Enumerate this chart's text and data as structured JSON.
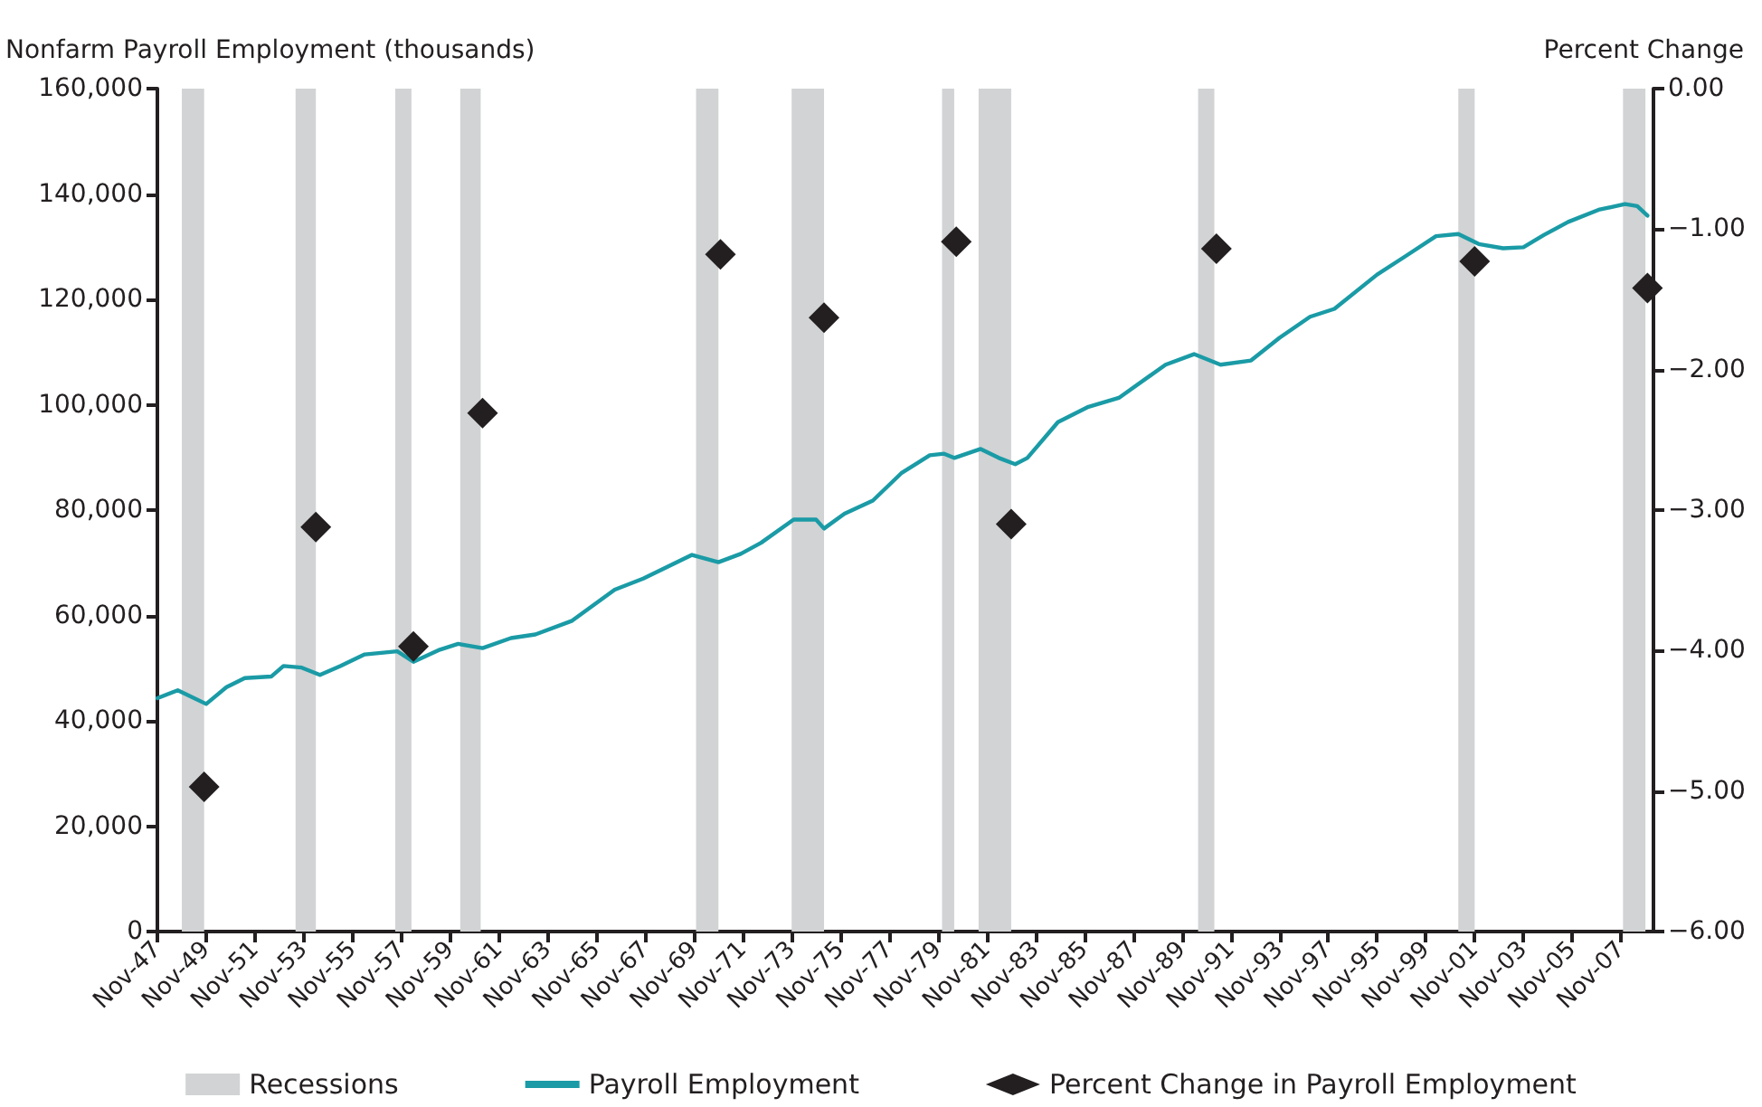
{
  "chart_data": {
    "type": "line",
    "ylabel": "Nonfarm Payroll Employment (thousands)",
    "y2label": "Percent Change",
    "xlim": [
      "1947-11",
      "2009-03"
    ],
    "xticks": [
      {
        "value": "1947-11",
        "label": "Nov-47"
      },
      {
        "value": "1949-11",
        "label": "Nov-49"
      },
      {
        "value": "1951-11",
        "label": "Nov-51"
      },
      {
        "value": "1953-11",
        "label": "Nov-53"
      },
      {
        "value": "1955-11",
        "label": "Nov-55"
      },
      {
        "value": "1957-11",
        "label": "Nov-57"
      },
      {
        "value": "1959-11",
        "label": "Nov-59"
      },
      {
        "value": "1961-11",
        "label": "Nov-61"
      },
      {
        "value": "1963-11",
        "label": "Nov-63"
      },
      {
        "value": "1965-11",
        "label": "Nov-65"
      },
      {
        "value": "1967-11",
        "label": "Nov-67"
      },
      {
        "value": "1969-11",
        "label": "Nov-69"
      },
      {
        "value": "1971-11",
        "label": "Nov-71"
      },
      {
        "value": "1973-11",
        "label": "Nov-73"
      },
      {
        "value": "1975-11",
        "label": "Nov-75"
      },
      {
        "value": "1977-11",
        "label": "Nov-77"
      },
      {
        "value": "1979-11",
        "label": "Nov-79"
      },
      {
        "value": "1981-11",
        "label": "Nov-81"
      },
      {
        "value": "1983-11",
        "label": "Nov-83"
      },
      {
        "value": "1985-11",
        "label": "Nov-85"
      },
      {
        "value": "1987-11",
        "label": "Nov-87"
      },
      {
        "value": "1989-11",
        "label": "Nov-89"
      },
      {
        "value": "1991-11",
        "label": "Nov-91"
      },
      {
        "value": "1993-11",
        "label": "Nov-93"
      },
      {
        "value": "1995-11",
        "label": "Nov-97"
      },
      {
        "value": "1997-11",
        "label": "Nov-95"
      },
      {
        "value": "1999-11",
        "label": "Nov-99"
      },
      {
        "value": "2001-11",
        "label": "Nov-01"
      },
      {
        "value": "2003-11",
        "label": "Nov-03"
      },
      {
        "value": "2005-11",
        "label": "Nov-05"
      },
      {
        "value": "2007-11",
        "label": "Nov-07"
      }
    ],
    "ylim": [
      0,
      160000
    ],
    "yticks": [
      0,
      {
        "value": 20000,
        "label": "20,000"
      },
      {
        "value": 40000,
        "label": "40,000"
      },
      {
        "value": 60000,
        "label": "60,000"
      },
      {
        "value": 80000,
        "label": "80,000"
      },
      {
        "value": 100000,
        "label": "100,000"
      },
      {
        "value": 120000,
        "label": "120,000"
      },
      {
        "value": 140000,
        "label": "140,000"
      },
      {
        "value": 160000,
        "label": "160,000"
      }
    ],
    "y2lim": [
      -6,
      0
    ],
    "y2ticks": [
      {
        "value": -6,
        "label": "−6.00"
      },
      {
        "value": -5,
        "label": "−5.00"
      },
      {
        "value": -4,
        "label": "−4.00"
      },
      {
        "value": -3,
        "label": "−3.00"
      },
      {
        "value": -2,
        "label": "−2.00"
      },
      {
        "value": -1,
        "label": "−1.00"
      },
      {
        "value": 0,
        "label": "0.00"
      }
    ],
    "grid": false,
    "legend": "bottom",
    "bands": [
      {
        "axis": "x",
        "from": "1948-11",
        "to": "1949-10",
        "label": "Recessions",
        "color": "#d1d3d4"
      },
      {
        "axis": "x",
        "from": "1953-07",
        "to": "1954-05",
        "color": "#d1d3d4"
      },
      {
        "axis": "x",
        "from": "1957-08",
        "to": "1958-04",
        "color": "#d1d3d4"
      },
      {
        "axis": "x",
        "from": "1960-04",
        "to": "1961-02",
        "color": "#d1d3d4"
      },
      {
        "axis": "x",
        "from": "1969-12",
        "to": "1970-11",
        "color": "#d1d3d4"
      },
      {
        "axis": "x",
        "from": "1973-11",
        "to": "1975-03",
        "color": "#d1d3d4"
      },
      {
        "axis": "x",
        "from": "1980-01",
        "to": "1980-07",
        "color": "#d1d3d4"
      },
      {
        "axis": "x",
        "from": "1981-07",
        "to": "1982-11",
        "color": "#d1d3d4"
      },
      {
        "axis": "x",
        "from": "1990-07",
        "to": "1991-03",
        "color": "#d1d3d4"
      },
      {
        "axis": "x",
        "from": "2001-03",
        "to": "2001-11",
        "color": "#d1d3d4"
      },
      {
        "axis": "x",
        "from": "2007-12",
        "to": "2008-11",
        "color": "#d1d3d4"
      }
    ],
    "series": [
      {
        "name": "Payroll Employment",
        "color": "#1a9ba6",
        "line_style": "solid",
        "x": [
          "1947-11",
          "1948-09",
          "1949-11",
          "1950-09",
          "1951-06",
          "1952-07",
          "1953-01",
          "1953-10",
          "1954-07",
          "1955-05",
          "1956-05",
          "1957-09",
          "1958-05",
          "1959-06",
          "1960-03",
          "1961-03",
          "1962-05",
          "1963-05",
          "1964-11",
          "1966-08",
          "1967-10",
          "1969-10",
          "1970-11",
          "1971-10",
          "1972-08",
          "1973-12",
          "1974-11",
          "1975-03",
          "1976-01",
          "1977-03",
          "1978-05",
          "1979-07",
          "1980-02",
          "1980-07",
          "1981-08",
          "1982-05",
          "1983-01",
          "1983-07",
          "1984-10",
          "1986-01",
          "1987-04",
          "1989-03",
          "1990-05",
          "1991-06",
          "1992-09",
          "1993-11",
          "1995-02",
          "1996-02",
          "1997-11",
          "1999-01",
          "2000-04",
          "2001-03",
          "2002-01",
          "2003-01",
          "2003-11",
          "2004-09",
          "2005-09",
          "2006-12",
          "2008-01",
          "2008-07",
          "2008-12"
        ],
        "values": [
          44300,
          45800,
          43200,
          46400,
          48100,
          48400,
          50400,
          50100,
          48700,
          50400,
          52600,
          53200,
          51200,
          53500,
          54600,
          53800,
          55700,
          56400,
          59000,
          64900,
          67000,
          71500,
          70100,
          71700,
          73800,
          78200,
          78200,
          76500,
          79300,
          81800,
          87000,
          90400,
          90700,
          89900,
          91600,
          89900,
          88700,
          89900,
          96700,
          99600,
          101300,
          107600,
          109600,
          107600,
          108400,
          112700,
          116700,
          118200,
          124700,
          128200,
          132000,
          132400,
          130500,
          129700,
          129900,
          132200,
          134700,
          137000,
          138100,
          137700,
          135900
        ]
      },
      {
        "name": "Percent Change in Payroll Employment",
        "type": "scatter",
        "axis": "y2",
        "color": "#231f20",
        "marker": "diamond",
        "x": [
          "1949-10",
          "1954-05",
          "1958-05",
          "1961-03",
          "1970-12",
          "1975-03",
          "1980-08",
          "1982-11",
          "1991-04",
          "2001-11",
          "2008-12"
        ],
        "values": [
          -4.97,
          -3.12,
          -3.97,
          -2.31,
          -1.18,
          -1.63,
          -1.09,
          -3.1,
          -1.14,
          -1.23,
          -1.42
        ]
      }
    ]
  }
}
